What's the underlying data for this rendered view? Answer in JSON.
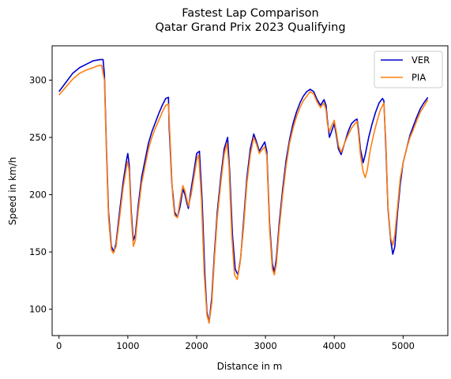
{
  "chart_data": {
    "type": "line",
    "title": "Fastest Lap Comparison",
    "subtitle": "Qatar Grand Prix 2023 Qualifying",
    "xlabel": "Distance in m",
    "ylabel": "Speed in km/h",
    "xlim": [
      -100,
      5650
    ],
    "ylim": [
      77,
      330
    ],
    "xticks": [
      0,
      1000,
      2000,
      3000,
      4000,
      5000
    ],
    "yticks": [
      100,
      150,
      200,
      250,
      300
    ],
    "xtick_labels": [
      "0",
      "1000",
      "2000",
      "3000",
      "4000",
      "5000"
    ],
    "ytick_labels": [
      "100",
      "150",
      "200",
      "250",
      "300"
    ],
    "grid": false,
    "legend_position": "top-right",
    "series": [
      {
        "name": "VER",
        "color": "#0000cd",
        "points": [
          [
            0,
            290
          ],
          [
            100,
            298
          ],
          [
            200,
            306
          ],
          [
            300,
            311
          ],
          [
            400,
            314
          ],
          [
            500,
            317
          ],
          [
            600,
            318
          ],
          [
            640,
            318
          ],
          [
            660,
            305
          ],
          [
            690,
            240
          ],
          [
            720,
            185
          ],
          [
            760,
            155
          ],
          [
            800,
            150
          ],
          [
            830,
            158
          ],
          [
            880,
            185
          ],
          [
            930,
            210
          ],
          [
            980,
            230
          ],
          [
            1000,
            236
          ],
          [
            1020,
            226
          ],
          [
            1050,
            185
          ],
          [
            1080,
            160
          ],
          [
            1110,
            165
          ],
          [
            1150,
            190
          ],
          [
            1200,
            215
          ],
          [
            1250,
            230
          ],
          [
            1300,
            245
          ],
          [
            1350,
            255
          ],
          [
            1400,
            263
          ],
          [
            1450,
            271
          ],
          [
            1500,
            278
          ],
          [
            1550,
            284
          ],
          [
            1590,
            285
          ],
          [
            1600,
            260
          ],
          [
            1640,
            210
          ],
          [
            1680,
            185
          ],
          [
            1720,
            180
          ],
          [
            1760,
            190
          ],
          [
            1800,
            205
          ],
          [
            1830,
            200
          ],
          [
            1860,
            192
          ],
          [
            1880,
            188
          ],
          [
            1920,
            205
          ],
          [
            1960,
            220
          ],
          [
            2000,
            236
          ],
          [
            2040,
            238
          ],
          [
            2080,
            195
          ],
          [
            2120,
            130
          ],
          [
            2150,
            98
          ],
          [
            2180,
            88
          ],
          [
            2220,
            110
          ],
          [
            2260,
            150
          ],
          [
            2300,
            185
          ],
          [
            2350,
            215
          ],
          [
            2400,
            240
          ],
          [
            2450,
            250
          ],
          [
            2480,
            220
          ],
          [
            2520,
            165
          ],
          [
            2560,
            135
          ],
          [
            2600,
            130
          ],
          [
            2640,
            145
          ],
          [
            2680,
            175
          ],
          [
            2730,
            215
          ],
          [
            2780,
            240
          ],
          [
            2830,
            253
          ],
          [
            2870,
            246
          ],
          [
            2910,
            238
          ],
          [
            2950,
            242
          ],
          [
            2990,
            246
          ],
          [
            3020,
            238
          ],
          [
            3060,
            175
          ],
          [
            3100,
            140
          ],
          [
            3130,
            132
          ],
          [
            3160,
            145
          ],
          [
            3200,
            175
          ],
          [
            3250,
            205
          ],
          [
            3300,
            230
          ],
          [
            3350,
            248
          ],
          [
            3400,
            262
          ],
          [
            3450,
            272
          ],
          [
            3500,
            280
          ],
          [
            3550,
            286
          ],
          [
            3600,
            290
          ],
          [
            3650,
            292
          ],
          [
            3700,
            290
          ],
          [
            3750,
            283
          ],
          [
            3800,
            278
          ],
          [
            3850,
            283
          ],
          [
            3880,
            278
          ],
          [
            3900,
            265
          ],
          [
            3930,
            250
          ],
          [
            3960,
            255
          ],
          [
            4000,
            262
          ],
          [
            4030,
            252
          ],
          [
            4060,
            240
          ],
          [
            4100,
            235
          ],
          [
            4150,
            245
          ],
          [
            4200,
            255
          ],
          [
            4250,
            262
          ],
          [
            4300,
            265
          ],
          [
            4330,
            266
          ],
          [
            4350,
            258
          ],
          [
            4380,
            240
          ],
          [
            4420,
            228
          ],
          [
            4450,
            235
          ],
          [
            4500,
            250
          ],
          [
            4550,
            262
          ],
          [
            4600,
            272
          ],
          [
            4650,
            280
          ],
          [
            4700,
            284
          ],
          [
            4720,
            282
          ],
          [
            4750,
            240
          ],
          [
            4780,
            188
          ],
          [
            4820,
            160
          ],
          [
            4850,
            148
          ],
          [
            4880,
            155
          ],
          [
            4920,
            185
          ],
          [
            4960,
            210
          ],
          [
            5000,
            228
          ],
          [
            5050,
            240
          ],
          [
            5100,
            252
          ],
          [
            5150,
            260
          ],
          [
            5200,
            268
          ],
          [
            5250,
            275
          ],
          [
            5300,
            280
          ],
          [
            5360,
            285
          ]
        ]
      },
      {
        "name": "PIA",
        "color": "#ff7f0e",
        "points": [
          [
            0,
            287
          ],
          [
            100,
            294
          ],
          [
            200,
            301
          ],
          [
            300,
            306
          ],
          [
            400,
            309
          ],
          [
            500,
            311
          ],
          [
            580,
            313
          ],
          [
            620,
            313
          ],
          [
            660,
            300
          ],
          [
            690,
            235
          ],
          [
            720,
            180
          ],
          [
            760,
            152
          ],
          [
            790,
            149
          ],
          [
            830,
            155
          ],
          [
            880,
            180
          ],
          [
            930,
            205
          ],
          [
            980,
            224
          ],
          [
            1000,
            229
          ],
          [
            1020,
            220
          ],
          [
            1050,
            180
          ],
          [
            1080,
            155
          ],
          [
            1110,
            160
          ],
          [
            1150,
            185
          ],
          [
            1200,
            210
          ],
          [
            1250,
            225
          ],
          [
            1300,
            240
          ],
          [
            1350,
            250
          ],
          [
            1400,
            258
          ],
          [
            1450,
            265
          ],
          [
            1500,
            272
          ],
          [
            1550,
            278
          ],
          [
            1590,
            279
          ],
          [
            1620,
            240
          ],
          [
            1650,
            200
          ],
          [
            1680,
            182
          ],
          [
            1720,
            180
          ],
          [
            1760,
            195
          ],
          [
            1800,
            208
          ],
          [
            1830,
            203
          ],
          [
            1860,
            195
          ],
          [
            1880,
            190
          ],
          [
            1920,
            200
          ],
          [
            1960,
            215
          ],
          [
            2000,
            230
          ],
          [
            2030,
            235
          ],
          [
            2070,
            195
          ],
          [
            2110,
            130
          ],
          [
            2150,
            95
          ],
          [
            2180,
            88
          ],
          [
            2220,
            105
          ],
          [
            2260,
            145
          ],
          [
            2300,
            180
          ],
          [
            2350,
            210
          ],
          [
            2400,
            235
          ],
          [
            2440,
            245
          ],
          [
            2470,
            225
          ],
          [
            2510,
            165
          ],
          [
            2550,
            130
          ],
          [
            2590,
            126
          ],
          [
            2630,
            140
          ],
          [
            2680,
            170
          ],
          [
            2730,
            210
          ],
          [
            2780,
            235
          ],
          [
            2830,
            250
          ],
          [
            2870,
            244
          ],
          [
            2910,
            236
          ],
          [
            2950,
            239
          ],
          [
            2990,
            242
          ],
          [
            3020,
            234
          ],
          [
            3060,
            170
          ],
          [
            3100,
            135
          ],
          [
            3130,
            130
          ],
          [
            3160,
            140
          ],
          [
            3200,
            170
          ],
          [
            3250,
            200
          ],
          [
            3300,
            225
          ],
          [
            3350,
            245
          ],
          [
            3400,
            258
          ],
          [
            3450,
            268
          ],
          [
            3500,
            276
          ],
          [
            3550,
            282
          ],
          [
            3600,
            286
          ],
          [
            3650,
            290
          ],
          [
            3700,
            288
          ],
          [
            3750,
            281
          ],
          [
            3800,
            276
          ],
          [
            3850,
            280
          ],
          [
            3880,
            274
          ],
          [
            3900,
            262
          ],
          [
            3930,
            255
          ],
          [
            3960,
            260
          ],
          [
            4000,
            265
          ],
          [
            4030,
            255
          ],
          [
            4060,
            243
          ],
          [
            4100,
            237
          ],
          [
            4150,
            245
          ],
          [
            4200,
            252
          ],
          [
            4250,
            258
          ],
          [
            4300,
            262
          ],
          [
            4330,
            264
          ],
          [
            4350,
            255
          ],
          [
            4380,
            235
          ],
          [
            4420,
            220
          ],
          [
            4450,
            215
          ],
          [
            4480,
            222
          ],
          [
            4520,
            238
          ],
          [
            4570,
            252
          ],
          [
            4620,
            264
          ],
          [
            4670,
            274
          ],
          [
            4720,
            280
          ],
          [
            4750,
            245
          ],
          [
            4780,
            190
          ],
          [
            4820,
            162
          ],
          [
            4850,
            156
          ],
          [
            4880,
            165
          ],
          [
            4920,
            190
          ],
          [
            4960,
            215
          ],
          [
            5000,
            228
          ],
          [
            5050,
            240
          ],
          [
            5100,
            250
          ],
          [
            5150,
            257
          ],
          [
            5200,
            265
          ],
          [
            5250,
            272
          ],
          [
            5300,
            277
          ],
          [
            5360,
            283
          ]
        ]
      }
    ]
  }
}
